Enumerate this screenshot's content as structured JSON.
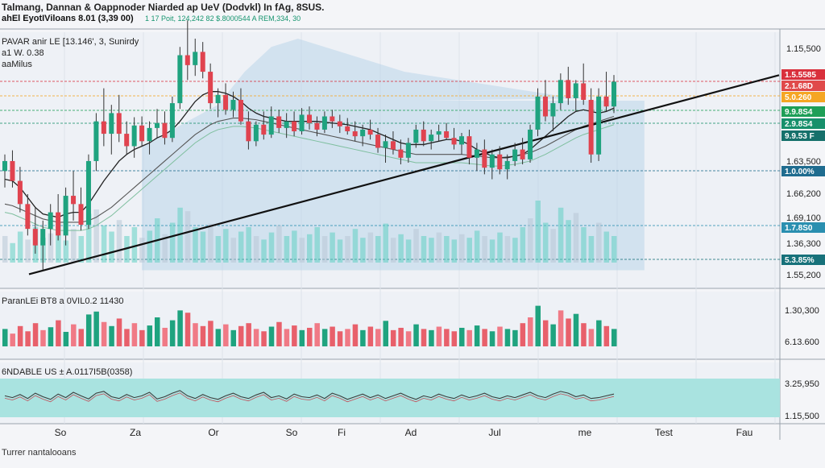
{
  "header": {
    "title": "Talmang, Dannan & Oappnoder Niarded ap UeV (Dodvkl) In fAg, 8SUS.",
    "subtitle": "ahEl EyotIViloans 8.01 (3,39 00)",
    "subtitle_values": "1 17 Poit, 124,242 82 $.8000544 A REM,334, 30"
  },
  "panels": {
    "main_label_1": "PAVAR anir LE [13.146', 3, Sunirdy",
    "main_label_2": "a1 W. 0.38",
    "main_label_3": "aaMilus",
    "volume_label": "ParanLEi BT8 a 0VIL0.2 11430",
    "osc_label": "6NDABLE US  ± A.0117I5B(0358)"
  },
  "bottom_note": "Turrer nantalooans",
  "colors": {
    "up": "#1fa37f",
    "down": "#e0434f",
    "area": "#bcd6ea",
    "trend": "#111111",
    "ma1": "#222222",
    "ma2": "#555555",
    "vol_teal": "#61cfc2",
    "osc_fill": "#a9e3e0"
  },
  "chart_data": {
    "type": "candlestick",
    "x_ticks": [
      "So",
      "Za",
      "Or",
      "So",
      "Fi",
      "Ad",
      "Jul",
      "me",
      "Test",
      "Fau"
    ],
    "price_axis": [
      "1.15,500",
      "1.63,500",
      "1.66,200",
      "1.69,100",
      "1.36,300",
      "1.55,200"
    ],
    "price_tags": [
      {
        "text": "1.5.5585",
        "color": "#d9303c"
      },
      {
        "text": "2.1.68D",
        "color": "#e04a4a"
      },
      {
        "text": "5.0.260",
        "color": "#f5a623"
      },
      {
        "text": "9.9.8S4",
        "color": "#1e9f57"
      },
      {
        "text": "2.9.8S4",
        "color": "#17906b"
      },
      {
        "text": "9.9.53 F",
        "color": "#16706b"
      },
      {
        "text": "1.0.00%",
        "color": "#1f6c8f"
      },
      {
        "text": "1.7.8S0",
        "color": "#2a8fb0"
      },
      {
        "text": "5.3.85%",
        "color": "#17717a"
      }
    ],
    "volume_axis": [
      "1.30,300",
      "6.13.600"
    ],
    "osc_axis": [
      "3.25,950",
      "1.15,500"
    ],
    "ylim": [
      1.4,
      1.7
    ],
    "candles": [
      {
        "o": 1.54,
        "h": 1.56,
        "l": 1.52,
        "c": 1.552
      },
      {
        "o": 1.552,
        "h": 1.565,
        "l": 1.52,
        "c": 1.528
      },
      {
        "o": 1.528,
        "h": 1.545,
        "l": 1.49,
        "c": 1.5
      },
      {
        "o": 1.5,
        "h": 1.512,
        "l": 1.462,
        "c": 1.47
      },
      {
        "o": 1.47,
        "h": 1.496,
        "l": 1.44,
        "c": 1.45
      },
      {
        "o": 1.45,
        "h": 1.48,
        "l": 1.42,
        "c": 1.47
      },
      {
        "o": 1.47,
        "h": 1.5,
        "l": 1.45,
        "c": 1.49
      },
      {
        "o": 1.49,
        "h": 1.512,
        "l": 1.456,
        "c": 1.462
      },
      {
        "o": 1.462,
        "h": 1.52,
        "l": 1.45,
        "c": 1.51
      },
      {
        "o": 1.51,
        "h": 1.54,
        "l": 1.48,
        "c": 1.5
      },
      {
        "o": 1.5,
        "h": 1.52,
        "l": 1.468,
        "c": 1.475
      },
      {
        "o": 1.475,
        "h": 1.56,
        "l": 1.47,
        "c": 1.552
      },
      {
        "o": 1.552,
        "h": 1.61,
        "l": 1.54,
        "c": 1.6
      },
      {
        "o": 1.6,
        "h": 1.64,
        "l": 1.57,
        "c": 1.585
      },
      {
        "o": 1.585,
        "h": 1.62,
        "l": 1.56,
        "c": 1.61
      },
      {
        "o": 1.61,
        "h": 1.632,
        "l": 1.575,
        "c": 1.585
      },
      {
        "o": 1.585,
        "h": 1.6,
        "l": 1.56,
        "c": 1.57
      },
      {
        "o": 1.57,
        "h": 1.605,
        "l": 1.556,
        "c": 1.595
      },
      {
        "o": 1.595,
        "h": 1.606,
        "l": 1.57,
        "c": 1.576
      },
      {
        "o": 1.576,
        "h": 1.6,
        "l": 1.56,
        "c": 1.592
      },
      {
        "o": 1.592,
        "h": 1.615,
        "l": 1.58,
        "c": 1.598
      },
      {
        "o": 1.598,
        "h": 1.612,
        "l": 1.572,
        "c": 1.58
      },
      {
        "o": 1.58,
        "h": 1.63,
        "l": 1.575,
        "c": 1.622
      },
      {
        "o": 1.622,
        "h": 1.69,
        "l": 1.615,
        "c": 1.68
      },
      {
        "o": 1.68,
        "h": 1.722,
        "l": 1.65,
        "c": 1.668
      },
      {
        "o": 1.668,
        "h": 1.7,
        "l": 1.655,
        "c": 1.684
      },
      {
        "o": 1.684,
        "h": 1.696,
        "l": 1.652,
        "c": 1.66
      },
      {
        "o": 1.66,
        "h": 1.67,
        "l": 1.615,
        "c": 1.622
      },
      {
        "o": 1.622,
        "h": 1.64,
        "l": 1.605,
        "c": 1.632
      },
      {
        "o": 1.632,
        "h": 1.646,
        "l": 1.608,
        "c": 1.614
      },
      {
        "o": 1.614,
        "h": 1.636,
        "l": 1.605,
        "c": 1.626
      },
      {
        "o": 1.626,
        "h": 1.64,
        "l": 1.596,
        "c": 1.6
      },
      {
        "o": 1.6,
        "h": 1.612,
        "l": 1.566,
        "c": 1.576
      },
      {
        "o": 1.576,
        "h": 1.6,
        "l": 1.57,
        "c": 1.596
      },
      {
        "o": 1.596,
        "h": 1.612,
        "l": 1.578,
        "c": 1.584
      },
      {
        "o": 1.584,
        "h": 1.618,
        "l": 1.58,
        "c": 1.606
      },
      {
        "o": 1.606,
        "h": 1.614,
        "l": 1.586,
        "c": 1.592
      },
      {
        "o": 1.592,
        "h": 1.61,
        "l": 1.58,
        "c": 1.6
      },
      {
        "o": 1.6,
        "h": 1.612,
        "l": 1.582,
        "c": 1.588
      },
      {
        "o": 1.588,
        "h": 1.616,
        "l": 1.584,
        "c": 1.608
      },
      {
        "o": 1.608,
        "h": 1.618,
        "l": 1.59,
        "c": 1.598
      },
      {
        "o": 1.598,
        "h": 1.606,
        "l": 1.582,
        "c": 1.59
      },
      {
        "o": 1.59,
        "h": 1.612,
        "l": 1.586,
        "c": 1.606
      },
      {
        "o": 1.606,
        "h": 1.614,
        "l": 1.592,
        "c": 1.6
      },
      {
        "o": 1.6,
        "h": 1.608,
        "l": 1.586,
        "c": 1.594
      },
      {
        "o": 1.594,
        "h": 1.604,
        "l": 1.584,
        "c": 1.588
      },
      {
        "o": 1.588,
        "h": 1.6,
        "l": 1.576,
        "c": 1.582
      },
      {
        "o": 1.582,
        "h": 1.596,
        "l": 1.57,
        "c": 1.59
      },
      {
        "o": 1.59,
        "h": 1.602,
        "l": 1.578,
        "c": 1.584
      },
      {
        "o": 1.584,
        "h": 1.592,
        "l": 1.562,
        "c": 1.568
      },
      {
        "o": 1.568,
        "h": 1.584,
        "l": 1.55,
        "c": 1.576
      },
      {
        "o": 1.576,
        "h": 1.588,
        "l": 1.56,
        "c": 1.566
      },
      {
        "o": 1.566,
        "h": 1.578,
        "l": 1.548,
        "c": 1.556
      },
      {
        "o": 1.556,
        "h": 1.58,
        "l": 1.55,
        "c": 1.574
      },
      {
        "o": 1.574,
        "h": 1.596,
        "l": 1.568,
        "c": 1.59
      },
      {
        "o": 1.59,
        "h": 1.6,
        "l": 1.57,
        "c": 1.576
      },
      {
        "o": 1.576,
        "h": 1.59,
        "l": 1.566,
        "c": 1.584
      },
      {
        "o": 1.584,
        "h": 1.596,
        "l": 1.576,
        "c": 1.588
      },
      {
        "o": 1.588,
        "h": 1.598,
        "l": 1.578,
        "c": 1.58
      },
      {
        "o": 1.58,
        "h": 1.592,
        "l": 1.566,
        "c": 1.572
      },
      {
        "o": 1.572,
        "h": 1.586,
        "l": 1.56,
        "c": 1.582
      },
      {
        "o": 1.582,
        "h": 1.59,
        "l": 1.548,
        "c": 1.556
      },
      {
        "o": 1.556,
        "h": 1.574,
        "l": 1.54,
        "c": 1.566
      },
      {
        "o": 1.566,
        "h": 1.578,
        "l": 1.536,
        "c": 1.544
      },
      {
        "o": 1.544,
        "h": 1.566,
        "l": 1.53,
        "c": 1.56
      },
      {
        "o": 1.56,
        "h": 1.57,
        "l": 1.536,
        "c": 1.542
      },
      {
        "o": 1.542,
        "h": 1.56,
        "l": 1.53,
        "c": 1.552
      },
      {
        "o": 1.552,
        "h": 1.574,
        "l": 1.546,
        "c": 1.566
      },
      {
        "o": 1.566,
        "h": 1.58,
        "l": 1.548,
        "c": 1.554
      },
      {
        "o": 1.554,
        "h": 1.596,
        "l": 1.55,
        "c": 1.59
      },
      {
        "o": 1.59,
        "h": 1.64,
        "l": 1.582,
        "c": 1.63
      },
      {
        "o": 1.63,
        "h": 1.65,
        "l": 1.6,
        "c": 1.606
      },
      {
        "o": 1.606,
        "h": 1.63,
        "l": 1.588,
        "c": 1.622
      },
      {
        "o": 1.622,
        "h": 1.658,
        "l": 1.614,
        "c": 1.65
      },
      {
        "o": 1.65,
        "h": 1.666,
        "l": 1.62,
        "c": 1.628
      },
      {
        "o": 1.628,
        "h": 1.65,
        "l": 1.612,
        "c": 1.646
      },
      {
        "o": 1.646,
        "h": 1.67,
        "l": 1.62,
        "c": 1.626
      },
      {
        "o": 1.626,
        "h": 1.64,
        "l": 1.55,
        "c": 1.56
      },
      {
        "o": 1.56,
        "h": 1.64,
        "l": 1.552,
        "c": 1.63
      },
      {
        "o": 1.63,
        "h": 1.66,
        "l": 1.612,
        "c": 1.618
      },
      {
        "o": 1.618,
        "h": 1.656,
        "l": 1.61,
        "c": 1.648
      }
    ],
    "ma_fast": [
      1.53,
      1.528,
      1.52,
      1.508,
      1.496,
      1.488,
      1.486,
      1.484,
      1.488,
      1.49,
      1.49,
      1.5,
      1.514,
      1.528,
      1.54,
      1.552,
      1.56,
      1.566,
      1.57,
      1.574,
      1.58,
      1.584,
      1.59,
      1.6,
      1.612,
      1.624,
      1.632,
      1.636,
      1.636,
      1.634,
      1.63,
      1.624,
      1.616,
      1.61,
      1.606,
      1.604,
      1.602,
      1.6,
      1.6,
      1.6,
      1.6,
      1.6,
      1.599,
      1.598,
      1.597,
      1.596,
      1.594,
      1.592,
      1.59,
      1.586,
      1.582,
      1.578,
      1.574,
      1.572,
      1.572,
      1.572,
      1.574,
      1.576,
      1.578,
      1.578,
      1.576,
      1.572,
      1.566,
      1.562,
      1.558,
      1.556,
      1.556,
      1.558,
      1.56,
      1.566,
      1.574,
      1.582,
      1.59,
      1.598,
      1.606,
      1.612,
      1.614,
      1.612,
      1.61,
      1.612,
      1.616
    ],
    "ma_slow": [
      1.5,
      1.498,
      1.494,
      1.49,
      1.486,
      1.482,
      1.48,
      1.478,
      1.478,
      1.478,
      1.478,
      1.48,
      1.484,
      1.49,
      1.496,
      1.504,
      1.512,
      1.52,
      1.528,
      1.536,
      1.544,
      1.552,
      1.56,
      1.568,
      1.576,
      1.584,
      1.59,
      1.596,
      1.6,
      1.602,
      1.604,
      1.604,
      1.603,
      1.602,
      1.6,
      1.598,
      1.596,
      1.594,
      1.592,
      1.59,
      1.588,
      1.586,
      1.584,
      1.582,
      1.58,
      1.578,
      1.576,
      1.574,
      1.572,
      1.57,
      1.568,
      1.566,
      1.564,
      1.562,
      1.56,
      1.56,
      1.56,
      1.56,
      1.56,
      1.56,
      1.56,
      1.559,
      1.558,
      1.557,
      1.556,
      1.556,
      1.557,
      1.558,
      1.56,
      1.562,
      1.566,
      1.57,
      1.575,
      1.58,
      1.585,
      1.59,
      1.594,
      1.597,
      1.6,
      1.603,
      1.606
    ],
    "trendline": [
      {
        "i": 0,
        "v": 1.42
      },
      {
        "i": 80,
        "v": 1.65
      }
    ],
    "volume": [
      30,
      22,
      35,
      26,
      40,
      28,
      33,
      45,
      25,
      38,
      30,
      55,
      60,
      42,
      35,
      48,
      30,
      40,
      28,
      36,
      50,
      32,
      45,
      62,
      58,
      40,
      35,
      44,
      30,
      38,
      28,
      35,
      40,
      30,
      26,
      34,
      42,
      30,
      36,
      28,
      32,
      40,
      30,
      34,
      26,
      30,
      38,
      28,
      34,
      30,
      44,
      28,
      32,
      26,
      38,
      30,
      28,
      34,
      30,
      26,
      32,
      28,
      36,
      30,
      26,
      34,
      30,
      28,
      40,
      50,
      70,
      45,
      38,
      62,
      48,
      56,
      40,
      30,
      45,
      35,
      30
    ],
    "oscillator": [
      52,
      48,
      55,
      46,
      58,
      50,
      44,
      56,
      48,
      60,
      52,
      45,
      58,
      62,
      50,
      46,
      55,
      48,
      52,
      60,
      45,
      50,
      58,
      64,
      52,
      46,
      55,
      48,
      44,
      52,
      58,
      50,
      46,
      54,
      60,
      48,
      52,
      45,
      56,
      50,
      48,
      54,
      46,
      58,
      52,
      44,
      50,
      56,
      48,
      54,
      46,
      52,
      58,
      50,
      44,
      52,
      48,
      56,
      50,
      46,
      54,
      48,
      52,
      58,
      50,
      46,
      52,
      48,
      54,
      60,
      52,
      48,
      56,
      62,
      58,
      50,
      54,
      46,
      48,
      52,
      56
    ]
  }
}
